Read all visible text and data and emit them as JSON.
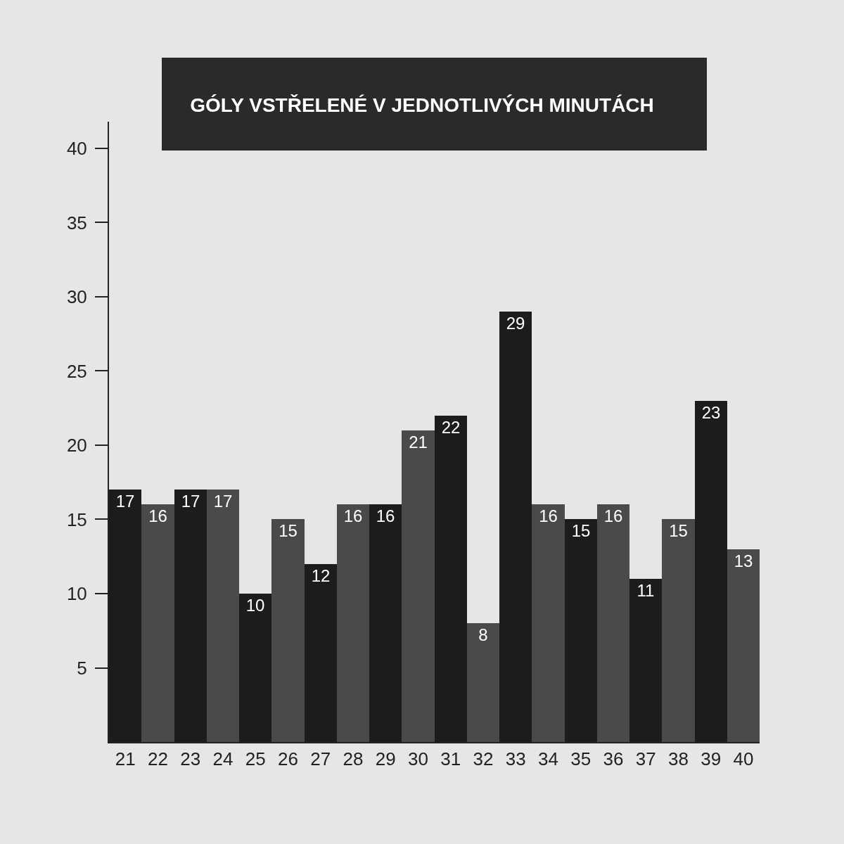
{
  "chart_data": {
    "type": "bar",
    "title": "GÓLY VSTŘELENÉ V JEDNOTLIVÝCH MINUTÁCH",
    "categories": [
      "21",
      "22",
      "23",
      "24",
      "25",
      "26",
      "27",
      "28",
      "29",
      "30",
      "31",
      "32",
      "33",
      "34",
      "35",
      "36",
      "37",
      "38",
      "39",
      "40"
    ],
    "values": [
      17,
      16,
      17,
      17,
      10,
      15,
      12,
      16,
      16,
      21,
      22,
      8,
      29,
      16,
      15,
      16,
      11,
      15,
      23,
      13
    ],
    "colors": [
      "#1c1c1c",
      "#4a4a4a",
      "#1c1c1c",
      "#4a4a4a",
      "#1c1c1c",
      "#4a4a4a",
      "#1c1c1c",
      "#4a4a4a",
      "#1c1c1c",
      "#4a4a4a",
      "#1c1c1c",
      "#4a4a4a",
      "#1c1c1c",
      "#4a4a4a",
      "#1c1c1c",
      "#4a4a4a",
      "#1c1c1c",
      "#4a4a4a",
      "#1c1c1c",
      "#4a4a4a"
    ],
    "ylim": [
      0,
      41.8
    ],
    "yticks": [
      5,
      10,
      15,
      20,
      25,
      30,
      35,
      40
    ],
    "data_labels": true,
    "grid": false,
    "legend": false
  }
}
